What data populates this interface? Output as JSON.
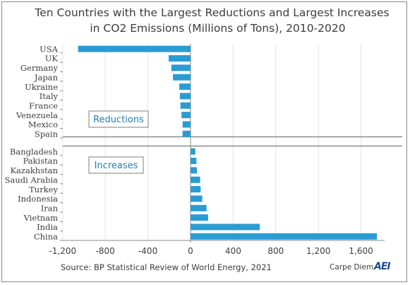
{
  "title_lines": [
    "Ten Countries with the Largest Reductions and Largest Increases",
    "in CO2 Emissions (Millions of Tons), 2010-2020"
  ],
  "source": "Source: BP Statistical Review of World Energy, 2021",
  "brand_text": "Carpe Diem",
  "brand_logo": "AEI",
  "colors": {
    "bar": "#2a9cd4",
    "text": "#3d3d3d",
    "divider": "#7a7a7a"
  },
  "chart_data": {
    "type": "bar",
    "orientation": "horizontal",
    "title": "Ten Countries with the Largest Reductions and Largest Increases in CO2 Emissions (Millions of Tons), 2010-2020",
    "xlim": [
      -1200,
      1800
    ],
    "xticks": [
      -1200,
      -800,
      -400,
      0,
      400,
      800,
      1200,
      1600
    ],
    "xtick_labels": [
      "-1,200",
      "-800",
      "-400",
      "0",
      "400",
      "800",
      "1,200",
      "1,600"
    ],
    "grid": "vertical",
    "groups": [
      {
        "label": "Reductions",
        "categories": [
          "USA",
          "UK",
          "Germany",
          "Japan",
          "Ukraine",
          "Italy",
          "France",
          "Venezuela",
          "Mexico",
          "Spain"
        ],
        "values": [
          -1055,
          -205,
          -180,
          -165,
          -105,
          -100,
          -95,
          -85,
          -75,
          -75
        ]
      },
      {
        "label": "Increases",
        "categories": [
          "Bangladesh",
          "Pakistan",
          "Kazakhstan",
          "Saudi Arabia",
          "Turkey",
          "Indonesia",
          "Iran",
          "Vietnam",
          "India",
          "China"
        ],
        "values": [
          45,
          55,
          60,
          90,
          95,
          110,
          150,
          165,
          650,
          1750
        ]
      }
    ]
  }
}
